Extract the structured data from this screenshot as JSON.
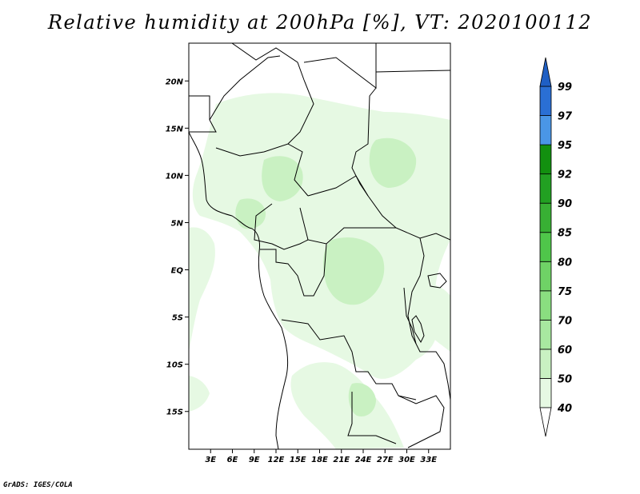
{
  "title": "Relative humidity at 200hPa [%], VT: 2020100112",
  "credit": "GrADS: IGES/COLA",
  "map": {
    "variable": "Relative humidity",
    "level": "200hPa",
    "units": "%",
    "valid_time": "2020100112",
    "lon_range": [
      0,
      36
    ],
    "lat_range": [
      -19,
      24
    ],
    "lat_ticks": [
      {
        "value": 20,
        "label": "20N"
      },
      {
        "value": 15,
        "label": "15N"
      },
      {
        "value": 10,
        "label": "10N"
      },
      {
        "value": 5,
        "label": "5N"
      },
      {
        "value": 0,
        "label": "EQ"
      },
      {
        "value": -5,
        "label": "5S"
      },
      {
        "value": -10,
        "label": "10S"
      },
      {
        "value": -15,
        "label": "15S"
      }
    ],
    "lon_ticks": [
      {
        "value": 3,
        "label": "3E"
      },
      {
        "value": 6,
        "label": "6E"
      },
      {
        "value": 9,
        "label": "9E"
      },
      {
        "value": 12,
        "label": "12E"
      },
      {
        "value": 15,
        "label": "15E"
      },
      {
        "value": 18,
        "label": "18E"
      },
      {
        "value": 21,
        "label": "21E"
      },
      {
        "value": 24,
        "label": "24E"
      },
      {
        "value": 27,
        "label": "27E"
      },
      {
        "value": 30,
        "label": "30E"
      },
      {
        "value": 33,
        "label": "33E"
      }
    ]
  },
  "colorbar": {
    "levels": [
      {
        "label": "40",
        "color": "#ffffff"
      },
      {
        "label": "50",
        "color": "#e6f9e3"
      },
      {
        "label": "60",
        "color": "#c9f1c2"
      },
      {
        "label": "70",
        "color": "#a8e8a0"
      },
      {
        "label": "75",
        "color": "#8ade80"
      },
      {
        "label": "80",
        "color": "#6fd266"
      },
      {
        "label": "85",
        "color": "#4fc64a"
      },
      {
        "label": "90",
        "color": "#38b034"
      },
      {
        "label": "92",
        "color": "#22a022"
      },
      {
        "label": "95",
        "color": "#12900f"
      },
      {
        "label": "97",
        "color": "#4a96e6"
      },
      {
        "label": "99",
        "color": "#2a6fd4"
      }
    ],
    "top_color": "#1f5fc4"
  },
  "fill_colors": {
    "light": "#e6f9e3",
    "medium": "#c9f1c2",
    "frame": "#000000"
  }
}
